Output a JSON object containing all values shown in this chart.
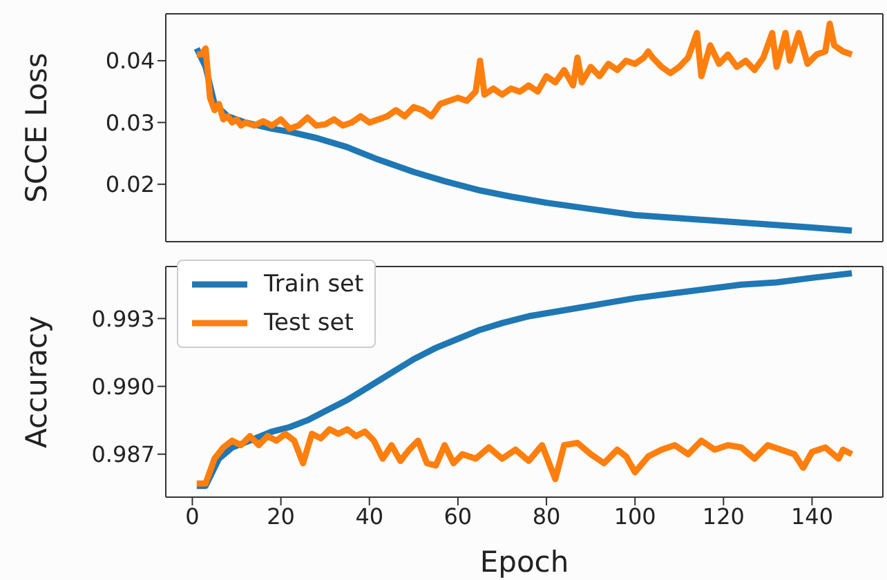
{
  "chart_data": [
    {
      "type": "line",
      "ylabel": "SCCE Loss",
      "xlim": [
        -6,
        156
      ],
      "ylim": [
        0.0107,
        0.0476
      ],
      "yticks": [
        0.02,
        0.03,
        0.04
      ],
      "tick_labels": "y",
      "grid": false,
      "legend": false,
      "series": [
        {
          "color": "#1f77b4",
          "x": [
            1,
            3,
            5,
            8,
            12,
            18,
            22,
            28,
            35,
            42,
            50,
            57,
            65,
            72,
            80,
            90,
            100,
            110,
            120,
            130,
            140,
            149
          ],
          "values": [
            0.042,
            0.039,
            0.033,
            0.031,
            0.03,
            0.029,
            0.0285,
            0.0275,
            0.026,
            0.024,
            0.022,
            0.0205,
            0.019,
            0.018,
            0.017,
            0.016,
            0.015,
            0.0145,
            0.014,
            0.0135,
            0.013,
            0.0125
          ]
        },
        {
          "color": "#ff7f0e",
          "x": [
            1,
            2,
            3,
            4,
            5,
            6,
            7,
            8,
            9,
            10,
            11,
            12,
            14,
            16,
            18,
            20,
            22,
            24,
            26,
            28,
            30,
            32,
            34,
            36,
            38,
            40,
            42,
            44,
            46,
            48,
            50,
            52,
            54,
            56,
            58,
            60,
            62,
            64,
            65,
            66,
            68,
            70,
            72,
            74,
            76,
            78,
            80,
            82,
            84,
            86,
            87,
            88,
            90,
            92,
            94,
            96,
            98,
            100,
            102,
            103,
            104,
            106,
            108,
            110,
            112,
            114,
            115,
            117,
            119,
            121,
            123,
            125,
            127,
            129,
            131,
            132,
            134,
            135,
            137,
            139,
            141,
            143,
            144,
            145,
            147,
            149
          ],
          "values": [
            0.041,
            0.041,
            0.042,
            0.034,
            0.032,
            0.033,
            0.0305,
            0.031,
            0.03,
            0.0305,
            0.0295,
            0.03,
            0.0295,
            0.0302,
            0.0295,
            0.0305,
            0.029,
            0.0295,
            0.0308,
            0.0295,
            0.0297,
            0.0305,
            0.0295,
            0.03,
            0.031,
            0.03,
            0.0305,
            0.031,
            0.032,
            0.031,
            0.0325,
            0.032,
            0.031,
            0.033,
            0.0335,
            0.034,
            0.0335,
            0.035,
            0.04,
            0.0345,
            0.0355,
            0.0345,
            0.0355,
            0.035,
            0.036,
            0.035,
            0.0375,
            0.0365,
            0.0385,
            0.036,
            0.0405,
            0.0365,
            0.039,
            0.0375,
            0.0395,
            0.0385,
            0.04,
            0.0395,
            0.0405,
            0.0415,
            0.0405,
            0.039,
            0.038,
            0.039,
            0.0405,
            0.0445,
            0.0375,
            0.0425,
            0.0395,
            0.041,
            0.039,
            0.04,
            0.0385,
            0.0405,
            0.0445,
            0.039,
            0.0445,
            0.04,
            0.0445,
            0.0395,
            0.041,
            0.0415,
            0.046,
            0.0425,
            0.0415,
            0.041
          ]
        }
      ]
    },
    {
      "type": "line",
      "xlabel": "Epoch",
      "ylabel": "Accuracy",
      "xlim": [
        -6,
        156
      ],
      "ylim": [
        0.9851,
        0.9953
      ],
      "xticks": [
        0,
        20,
        40,
        60,
        80,
        100,
        120,
        140
      ],
      "yticks": [
        0.987,
        {
          "value": 0.99,
          "label": "0.990"
        },
        0.993
      ],
      "grid": false,
      "legend": "top left",
      "series": [
        {
          "name": "Train set",
          "color": "#1f77b4",
          "x": [
            1,
            3,
            6,
            9,
            13,
            18,
            22,
            26,
            30,
            35,
            40,
            45,
            50,
            55,
            60,
            65,
            70,
            76,
            82,
            88,
            94,
            100,
            108,
            116,
            124,
            132,
            140,
            149
          ],
          "values": [
            0.9856,
            0.9856,
            0.9868,
            0.9873,
            0.9876,
            0.988,
            0.9882,
            0.9885,
            0.9889,
            0.9894,
            0.99,
            0.9906,
            0.9912,
            0.9917,
            0.9921,
            0.9925,
            0.9928,
            0.9931,
            0.9933,
            0.9935,
            0.9937,
            0.9939,
            0.9941,
            0.9943,
            0.9945,
            0.9946,
            0.9948,
            0.995
          ]
        },
        {
          "name": "Test set",
          "color": "#ff7f0e",
          "x": [
            1,
            3,
            5,
            7,
            9,
            11,
            13,
            15,
            17,
            19,
            21,
            23,
            25,
            27,
            29,
            31,
            33,
            35,
            37,
            39,
            41,
            43,
            45,
            47,
            49,
            51,
            53,
            55,
            57,
            59,
            61,
            64,
            67,
            70,
            73,
            76,
            79,
            82,
            84,
            87,
            90,
            93,
            96,
            98,
            100,
            103,
            106,
            109,
            112,
            115,
            118,
            121,
            124,
            127,
            130,
            133,
            136,
            138,
            140,
            143,
            146,
            147,
            149
          ],
          "values": [
            0.9857,
            0.9857,
            0.9868,
            0.9873,
            0.9876,
            0.9874,
            0.9878,
            0.9874,
            0.9878,
            0.9876,
            0.9879,
            0.9876,
            0.9866,
            0.9879,
            0.9877,
            0.9881,
            0.9879,
            0.9881,
            0.9878,
            0.988,
            0.9876,
            0.9868,
            0.9874,
            0.9867,
            0.9872,
            0.9876,
            0.9866,
            0.9865,
            0.9874,
            0.9866,
            0.987,
            0.9868,
            0.9873,
            0.9868,
            0.9872,
            0.9867,
            0.9874,
            0.9859,
            0.9874,
            0.9875,
            0.987,
            0.9866,
            0.9872,
            0.9869,
            0.9862,
            0.9869,
            0.9872,
            0.9874,
            0.987,
            0.9876,
            0.9872,
            0.9874,
            0.9873,
            0.9868,
            0.9874,
            0.9872,
            0.987,
            0.9864,
            0.9871,
            0.9873,
            0.9868,
            0.9872,
            0.987
          ]
        }
      ]
    }
  ]
}
